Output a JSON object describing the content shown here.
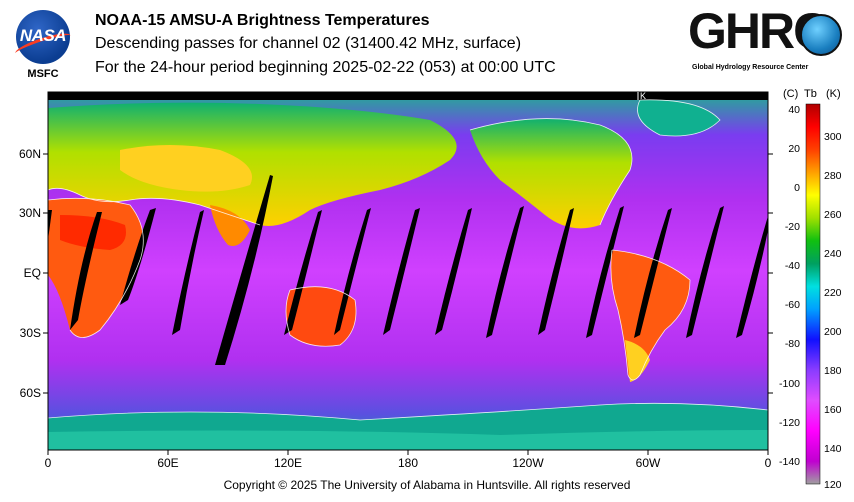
{
  "header": {
    "title": "NOAA-15 AMSU-A Brightness Temperatures",
    "subtitle": "Descending passes for channel 02 (31400.42 MHz, surface)",
    "period": "For the 24-hour period beginning 2025-02-22 (053) at 00:00 UTC"
  },
  "logos": {
    "nasa_text": "NASA",
    "msfc_text": "MSFC",
    "ghrc_text": "GHRC",
    "ghrc_subtitle": "Global Hydrology Resource Center"
  },
  "map": {
    "lat_labels": [
      "60N",
      "30N",
      "EQ",
      "30S",
      "60S"
    ],
    "lon_labels": [
      "0",
      "60E",
      "120E",
      "180",
      "120W",
      "60W",
      "0"
    ],
    "marker": "K"
  },
  "colorbar": {
    "header_c": "(C)",
    "header_tb": "Tb",
    "header_k": "(K)",
    "celsius_ticks": [
      "40",
      "20",
      "0",
      "-20",
      "-40",
      "-60",
      "-80",
      "-100",
      "-120",
      "-140"
    ],
    "kelvin_ticks": [
      "300",
      "280",
      "260",
      "240",
      "220",
      "200",
      "180",
      "160",
      "140",
      "120"
    ],
    "stops": [
      "#a0a0a0",
      "#b000d0",
      "#ff00ff",
      "#e04cff",
      "#8a3cff",
      "#1010ff",
      "#00a0ff",
      "#00e0e0",
      "#00a060",
      "#10c010",
      "#a0e000",
      "#ffff00",
      "#ffa000",
      "#ff4000",
      "#ff0000",
      "#c00000"
    ]
  },
  "footer": {
    "copyright": "Copyright © 2025 The University of Alabama in Huntsville.  All rights reserved"
  }
}
